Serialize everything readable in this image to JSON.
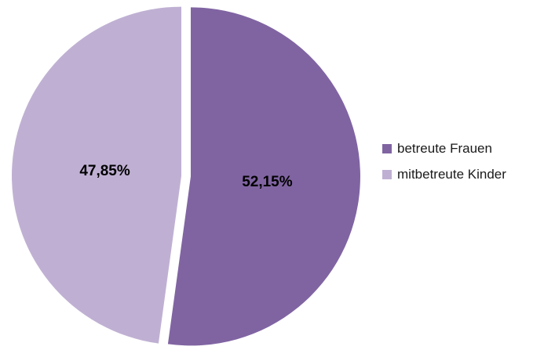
{
  "chart_data": {
    "type": "pie",
    "title": "",
    "slices": [
      {
        "label": "betreute Frauen",
        "value": 52.15,
        "display": "52,15%",
        "color": "#8064a2"
      },
      {
        "label": "mitbetreute Kinder",
        "value": 47.85,
        "display": "47,85%",
        "color": "#bfb0d3"
      }
    ],
    "legend_position": "right"
  }
}
